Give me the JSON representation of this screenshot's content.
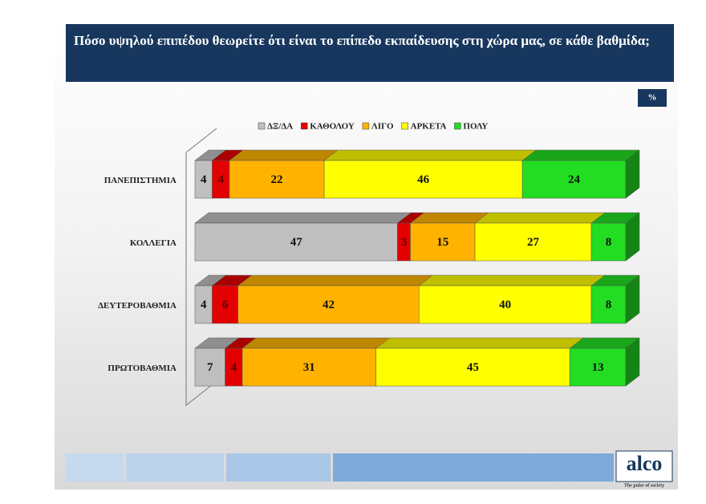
{
  "chart_data": {
    "type": "stacked-bar-3d",
    "title": "Πόσο υψηλού επιπέδου θεωρείτε ότι είναι το επίπεδο εκπαίδευσης στη χώρα μας, σε κάθε βαθμίδα;",
    "unit": "%",
    "categories": [
      "ΠΑΝΕΠΙΣΤΗΜΙΑ",
      "ΚΟΛΛΕΓΙΑ",
      "ΔΕΥΤΕΡΟΒΑΘΜΙΑ",
      "ΠΡΩΤΟΒΑΘΜΙΑ"
    ],
    "series": [
      {
        "name": "ΔΞ/ΔΑ",
        "color": "#bfbfbf",
        "values": [
          4,
          47,
          4,
          7
        ]
      },
      {
        "name": "ΚΑΘΟΛΟΥ",
        "color": "#e30000",
        "values": [
          4,
          3,
          6,
          4
        ]
      },
      {
        "name": "ΛΙΓΟ",
        "color": "#ffb300",
        "values": [
          22,
          15,
          42,
          31
        ]
      },
      {
        "name": "ΑΡΚΕΤΑ",
        "color": "#ffff00",
        "values": [
          46,
          27,
          40,
          45
        ]
      },
      {
        "name": "ΠΟΛΥ",
        "color": "#22dd22",
        "values": [
          24,
          8,
          8,
          13
        ]
      }
    ],
    "legend": "top"
  },
  "brand": {
    "logo": "alco",
    "tagline": "The pulse of society"
  }
}
